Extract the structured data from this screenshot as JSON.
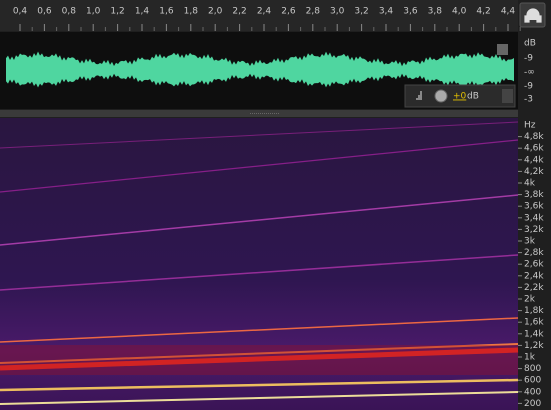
{
  "time_ruler": {
    "labels": [
      "0,4",
      "0,6",
      "0,8",
      "1,0",
      "1,2",
      "1,4",
      "1,6",
      "1,8",
      "2,0",
      "2,2",
      "2,4",
      "2,6",
      "2,8",
      "3,0",
      "3,2",
      "3,4",
      "3,6",
      "3,8",
      "4,0",
      "4,2",
      "4,4"
    ]
  },
  "waveform": {
    "db_scale": [
      "dB",
      "-9",
      "-∞",
      "-9",
      "-3"
    ],
    "volume": {
      "value": "+0",
      "unit": "dB"
    }
  },
  "spectrogram": {
    "hz_scale": [
      "Hz",
      "4,8k",
      "4,6k",
      "4,4k",
      "4,2k",
      "4k",
      "3,8k",
      "3,6k",
      "3,4k",
      "3,2k",
      "3k",
      "2,8k",
      "2,6k",
      "2,4k",
      "2,2k",
      "2k",
      "1,8k",
      "1,6k",
      "1,4k",
      "1,2k",
      "1k",
      "800",
      "600",
      "400",
      "200"
    ]
  }
}
